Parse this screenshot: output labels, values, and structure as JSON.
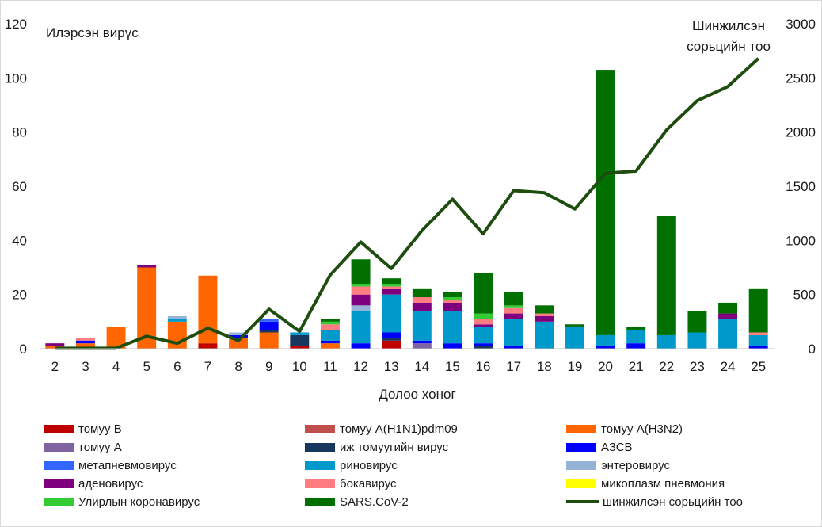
{
  "chart_data": {
    "type": "bar",
    "stacked": true,
    "xlabel": "Долоо хоног",
    "ylabel_left": "Илэрсэн вирүс",
    "ylabel_right": "Шинжилсэн сорьцийн тоо",
    "ylim_left": [
      0,
      120
    ],
    "ylim_right": [
      0,
      3000
    ],
    "yticks_left": [
      "0",
      "20",
      "40",
      "60",
      "80",
      "100",
      "120"
    ],
    "yticks_right": [
      "0",
      "500",
      "1000",
      "1500",
      "2000",
      "2500",
      "3000"
    ],
    "categories": [
      "2",
      "3",
      "4",
      "5",
      "6",
      "7",
      "8",
      "9",
      "10",
      "11",
      "12",
      "13",
      "14",
      "15",
      "16",
      "17",
      "18",
      "19",
      "20",
      "21",
      "22",
      "23",
      "24",
      "25"
    ],
    "series": [
      {
        "name": "томуу B",
        "color": "#c00000",
        "values": [
          0,
          0,
          0,
          0,
          0,
          2,
          0,
          0,
          1,
          0,
          0,
          3,
          0,
          0,
          0,
          0,
          0,
          0,
          0,
          0,
          0,
          0,
          0,
          0
        ]
      },
      {
        "name": "томуу A(H1N1)pdm09",
        "color": "#c0504d",
        "values": [
          0,
          0,
          0,
          0,
          0,
          0,
          0,
          0,
          0,
          0,
          0,
          0,
          0,
          0,
          0,
          0,
          0,
          0,
          0,
          0,
          0,
          0,
          0,
          0
        ]
      },
      {
        "name": "томуу A(H3N2)",
        "color": "#ff6600",
        "values": [
          1,
          2,
          8,
          30,
          10,
          25,
          4,
          6,
          0,
          2,
          0,
          0,
          0,
          0,
          0,
          0,
          0,
          0,
          0,
          0,
          0,
          0,
          0,
          0
        ]
      },
      {
        "name": "томуу A",
        "color": "#8064a2",
        "values": [
          0,
          0,
          0,
          0,
          0,
          0,
          0,
          0,
          0,
          0,
          0,
          0,
          2,
          0,
          0,
          0,
          0,
          0,
          0,
          0,
          0,
          0,
          0,
          0
        ]
      },
      {
        "name": "иж томуугийн вирус",
        "color": "#17375e",
        "values": [
          0,
          0,
          0,
          0,
          0,
          0,
          0,
          1,
          4,
          0,
          0,
          1,
          0,
          0,
          1,
          0,
          0,
          0,
          0,
          0,
          0,
          0,
          0,
          0
        ]
      },
      {
        "name": "АЗСВ",
        "color": "#0000ff",
        "values": [
          0,
          1,
          0,
          0,
          0,
          0,
          1,
          3,
          0,
          1,
          2,
          2,
          1,
          2,
          1,
          1,
          0,
          0,
          1,
          2,
          0,
          0,
          0,
          1
        ]
      },
      {
        "name": "метапневмовирус",
        "color": "#3366ff",
        "values": [
          0,
          0,
          0,
          0,
          0,
          0,
          0,
          1,
          0,
          0,
          0,
          0,
          0,
          0,
          0,
          0,
          0,
          0,
          0,
          0,
          0,
          0,
          0,
          0
        ]
      },
      {
        "name": "риновирус",
        "color": "#0099cc",
        "values": [
          0,
          0,
          0,
          0,
          1,
          0,
          0,
          0,
          1,
          4,
          12,
          14,
          11,
          12,
          6,
          10,
          10,
          8,
          4,
          5,
          5,
          6,
          11,
          4
        ]
      },
      {
        "name": "энтеровирус",
        "color": "#95b3d7",
        "values": [
          0,
          0,
          0,
          0,
          1,
          0,
          1,
          0,
          0,
          0,
          2,
          0,
          0,
          0,
          0,
          0,
          0,
          0,
          0,
          0,
          0,
          0,
          0,
          0
        ]
      },
      {
        "name": "аденовирус",
        "color": "#7f007f",
        "values": [
          1,
          0,
          0,
          1,
          0,
          0,
          0,
          0,
          0,
          0,
          4,
          2,
          3,
          3,
          1,
          2,
          2,
          0,
          0,
          0,
          0,
          0,
          2,
          0
        ]
      },
      {
        "name": "бокавирус",
        "color": "#ff7c80",
        "values": [
          0,
          1,
          0,
          0,
          0,
          0,
          0,
          0,
          0,
          2,
          3,
          1,
          2,
          1,
          2,
          2,
          1,
          0,
          0,
          0,
          0,
          0,
          0,
          1
        ]
      },
      {
        "name": "микоплазм пневмония",
        "color": "#ffff00",
        "values": [
          0,
          0,
          0,
          0,
          0,
          0,
          0,
          0,
          0,
          0,
          0,
          0,
          0,
          0,
          0,
          0,
          0,
          0,
          0,
          0,
          0,
          0,
          0,
          0
        ]
      },
      {
        "name": "Улирлын коронавирус",
        "color": "#33cc33",
        "values": [
          0,
          0,
          0,
          0,
          0,
          0,
          0,
          0,
          0,
          1,
          1,
          1,
          0,
          1,
          2,
          1,
          0,
          0,
          0,
          0,
          0,
          0,
          0,
          0
        ]
      },
      {
        "name": "SARS.CoV-2",
        "color": "#007000",
        "values": [
          0,
          0,
          0,
          0,
          0,
          0,
          0,
          0,
          0,
          1,
          9,
          2,
          3,
          2,
          15,
          5,
          3,
          1,
          98,
          1,
          44,
          8,
          4,
          16
        ]
      }
    ],
    "line_series": {
      "name": "шинжилсэн сорьцийн тоо",
      "color": "#1e4d0f",
      "axis": "right",
      "values": [
        5,
        5,
        5,
        115,
        50,
        190,
        75,
        365,
        160,
        680,
        985,
        740,
        1090,
        1380,
        1060,
        1460,
        1440,
        1290,
        1620,
        1640,
        2020,
        2290,
        2420,
        2680
      ]
    },
    "legend_placement": "bottom",
    "grid": false
  }
}
